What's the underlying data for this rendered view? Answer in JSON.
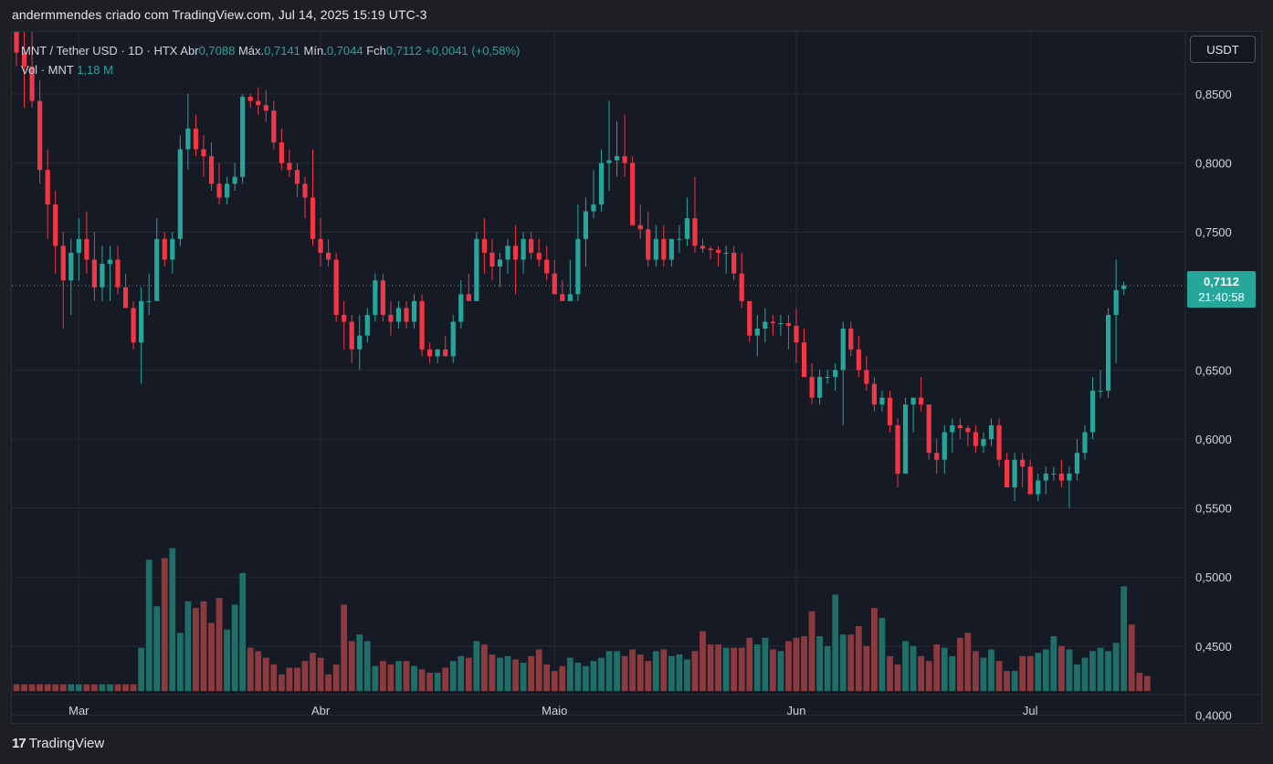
{
  "header": {
    "attribution": "andermmendes criado com TradingView.com, Jul 14, 2025 15:19 UTC-3"
  },
  "legend": {
    "symbol": "MNT / Tether USD · 1D · HTX",
    "open_label": "Abr",
    "open_value": "0,7088",
    "high_label": "Máx.",
    "high_value": "0,7141",
    "low_label": "Mín.",
    "low_value": "0,7044",
    "close_label": "Fch",
    "close_value": "0,7112",
    "change": "+0,0041 (+0,58%)",
    "volume_label": "Vol · MNT",
    "volume_value": "1,18 M"
  },
  "currency_button": "USDT",
  "last_price": {
    "price": "0,7112",
    "countdown": "21:40:58"
  },
  "footer": {
    "logo_mark": "17",
    "brand": "TradingView"
  },
  "colors": {
    "up": "#26a69a",
    "down": "#f23645",
    "volume_up": "#1f6e67",
    "volume_down": "#8c3a3f",
    "background": "#161a25",
    "grid": "#262a35"
  },
  "chart_data": {
    "type": "candlestick",
    "price_axis_ticks": [
      "0,8500",
      "0,8000",
      "0,7500",
      "0,6500",
      "0,6000",
      "0,5500",
      "0,5000",
      "0,4500",
      "0,4000"
    ],
    "price_axis_values": [
      0.85,
      0.8,
      0.75,
      0.65,
      0.6,
      0.55,
      0.5,
      0.45,
      0.4
    ],
    "ylim": [
      0.393,
      0.895
    ],
    "time_axis_labels": [
      "Mar",
      "Abr",
      "Maio",
      "Jun",
      "Jul"
    ],
    "time_axis_label_bar_index": [
      8,
      39,
      69,
      100,
      130
    ],
    "bar_count": 147,
    "last_price": 0.7112,
    "ohlc": [
      [
        0.905,
        0.93,
        0.87,
        0.88
      ],
      [
        0.88,
        0.92,
        0.84,
        0.87
      ],
      [
        0.87,
        0.91,
        0.84,
        0.845
      ],
      [
        0.845,
        0.86,
        0.785,
        0.795
      ],
      [
        0.795,
        0.81,
        0.745,
        0.77
      ],
      [
        0.77,
        0.78,
        0.72,
        0.74
      ],
      [
        0.74,
        0.75,
        0.68,
        0.715
      ],
      [
        0.715,
        0.745,
        0.69,
        0.735
      ],
      [
        0.735,
        0.76,
        0.715,
        0.745
      ],
      [
        0.745,
        0.765,
        0.72,
        0.73
      ],
      [
        0.73,
        0.75,
        0.7,
        0.71
      ],
      [
        0.71,
        0.74,
        0.7,
        0.727
      ],
      [
        0.727,
        0.74,
        0.7,
        0.73
      ],
      [
        0.73,
        0.74,
        0.705,
        0.71
      ],
      [
        0.71,
        0.72,
        0.695,
        0.695
      ],
      [
        0.695,
        0.7,
        0.665,
        0.67
      ],
      [
        0.67,
        0.71,
        0.64,
        0.7
      ],
      [
        0.7,
        0.72,
        0.69,
        0.7
      ],
      [
        0.7,
        0.76,
        0.7,
        0.745
      ],
      [
        0.745,
        0.75,
        0.725,
        0.73
      ],
      [
        0.73,
        0.75,
        0.72,
        0.745
      ],
      [
        0.745,
        0.82,
        0.74,
        0.81
      ],
      [
        0.81,
        0.85,
        0.795,
        0.825
      ],
      [
        0.825,
        0.835,
        0.805,
        0.81
      ],
      [
        0.81,
        0.82,
        0.79,
        0.805
      ],
      [
        0.805,
        0.815,
        0.78,
        0.785
      ],
      [
        0.785,
        0.8,
        0.77,
        0.775
      ],
      [
        0.775,
        0.79,
        0.77,
        0.785
      ],
      [
        0.785,
        0.8,
        0.78,
        0.79
      ],
      [
        0.79,
        0.85,
        0.785,
        0.848
      ],
      [
        0.848,
        0.85,
        0.84,
        0.845
      ],
      [
        0.845,
        0.855,
        0.835,
        0.842
      ],
      [
        0.842,
        0.853,
        0.83,
        0.838
      ],
      [
        0.838,
        0.845,
        0.81,
        0.815
      ],
      [
        0.815,
        0.825,
        0.795,
        0.8
      ],
      [
        0.8,
        0.81,
        0.79,
        0.795
      ],
      [
        0.795,
        0.8,
        0.775,
        0.785
      ],
      [
        0.785,
        0.79,
        0.76,
        0.775
      ],
      [
        0.775,
        0.81,
        0.74,
        0.745
      ],
      [
        0.745,
        0.76,
        0.725,
        0.735
      ],
      [
        0.735,
        0.745,
        0.725,
        0.73
      ],
      [
        0.73,
        0.735,
        0.685,
        0.69
      ],
      [
        0.69,
        0.7,
        0.665,
        0.685
      ],
      [
        0.685,
        0.69,
        0.655,
        0.665
      ],
      [
        0.665,
        0.69,
        0.65,
        0.675
      ],
      [
        0.675,
        0.695,
        0.67,
        0.69
      ],
      [
        0.69,
        0.72,
        0.685,
        0.715
      ],
      [
        0.715,
        0.72,
        0.685,
        0.69
      ],
      [
        0.69,
        0.7,
        0.675,
        0.685
      ],
      [
        0.685,
        0.7,
        0.68,
        0.695
      ],
      [
        0.695,
        0.7,
        0.68,
        0.685
      ],
      [
        0.685,
        0.705,
        0.68,
        0.7
      ],
      [
        0.7,
        0.705,
        0.66,
        0.665
      ],
      [
        0.665,
        0.67,
        0.655,
        0.66
      ],
      [
        0.66,
        0.665,
        0.655,
        0.665
      ],
      [
        0.665,
        0.675,
        0.66,
        0.66
      ],
      [
        0.66,
        0.69,
        0.655,
        0.685
      ],
      [
        0.685,
        0.715,
        0.68,
        0.705
      ],
      [
        0.705,
        0.72,
        0.7,
        0.7
      ],
      [
        0.7,
        0.75,
        0.7,
        0.745
      ],
      [
        0.745,
        0.76,
        0.72,
        0.735
      ],
      [
        0.735,
        0.745,
        0.715,
        0.725
      ],
      [
        0.725,
        0.735,
        0.71,
        0.73
      ],
      [
        0.73,
        0.745,
        0.72,
        0.74
      ],
      [
        0.74,
        0.755,
        0.705,
        0.73
      ],
      [
        0.73,
        0.75,
        0.72,
        0.745
      ],
      [
        0.745,
        0.75,
        0.73,
        0.735
      ],
      [
        0.735,
        0.745,
        0.725,
        0.73
      ],
      [
        0.73,
        0.74,
        0.715,
        0.72
      ],
      [
        0.72,
        0.73,
        0.705,
        0.705
      ],
      [
        0.705,
        0.715,
        0.7,
        0.7
      ],
      [
        0.7,
        0.73,
        0.7,
        0.705
      ],
      [
        0.705,
        0.77,
        0.7,
        0.745
      ],
      [
        0.745,
        0.775,
        0.725,
        0.765
      ],
      [
        0.765,
        0.795,
        0.76,
        0.77
      ],
      [
        0.77,
        0.81,
        0.765,
        0.8
      ],
      [
        0.8,
        0.845,
        0.78,
        0.802
      ],
      [
        0.802,
        0.83,
        0.79,
        0.805
      ],
      [
        0.805,
        0.835,
        0.79,
        0.8
      ],
      [
        0.8,
        0.805,
        0.755,
        0.755
      ],
      [
        0.755,
        0.77,
        0.745,
        0.752
      ],
      [
        0.752,
        0.765,
        0.725,
        0.73
      ],
      [
        0.73,
        0.755,
        0.725,
        0.745
      ],
      [
        0.745,
        0.755,
        0.725,
        0.73
      ],
      [
        0.73,
        0.745,
        0.725,
        0.745
      ],
      [
        0.745,
        0.755,
        0.735,
        0.745
      ],
      [
        0.745,
        0.775,
        0.74,
        0.76
      ],
      [
        0.76,
        0.79,
        0.735,
        0.74
      ],
      [
        0.74,
        0.745,
        0.735,
        0.738
      ],
      [
        0.738,
        0.74,
        0.73,
        0.737
      ],
      [
        0.737,
        0.74,
        0.725,
        0.735
      ],
      [
        0.735,
        0.74,
        0.72,
        0.735
      ],
      [
        0.735,
        0.74,
        0.715,
        0.72
      ],
      [
        0.72,
        0.735,
        0.695,
        0.7
      ],
      [
        0.7,
        0.7,
        0.67,
        0.675
      ],
      [
        0.675,
        0.69,
        0.66,
        0.68
      ],
      [
        0.68,
        0.695,
        0.67,
        0.685
      ],
      [
        0.685,
        0.69,
        0.675,
        0.684
      ],
      [
        0.684,
        0.69,
        0.675,
        0.684
      ],
      [
        0.684,
        0.69,
        0.665,
        0.682
      ],
      [
        0.682,
        0.695,
        0.655,
        0.67
      ],
      [
        0.67,
        0.68,
        0.645,
        0.645
      ],
      [
        0.645,
        0.655,
        0.625,
        0.63
      ],
      [
        0.63,
        0.65,
        0.625,
        0.645
      ],
      [
        0.645,
        0.65,
        0.64,
        0.645
      ],
      [
        0.645,
        0.655,
        0.635,
        0.65
      ],
      [
        0.65,
        0.685,
        0.61,
        0.68
      ],
      [
        0.68,
        0.685,
        0.66,
        0.665
      ],
      [
        0.665,
        0.675,
        0.645,
        0.65
      ],
      [
        0.65,
        0.66,
        0.635,
        0.64
      ],
      [
        0.64,
        0.645,
        0.62,
        0.625
      ],
      [
        0.625,
        0.635,
        0.62,
        0.63
      ],
      [
        0.63,
        0.635,
        0.605,
        0.61
      ],
      [
        0.61,
        0.615,
        0.565,
        0.575
      ],
      [
        0.575,
        0.63,
        0.575,
        0.625
      ],
      [
        0.625,
        0.63,
        0.605,
        0.63
      ],
      [
        0.63,
        0.645,
        0.62,
        0.625
      ],
      [
        0.625,
        0.625,
        0.585,
        0.59
      ],
      [
        0.59,
        0.6,
        0.575,
        0.585
      ],
      [
        0.585,
        0.61,
        0.575,
        0.605
      ],
      [
        0.605,
        0.615,
        0.59,
        0.61
      ],
      [
        0.61,
        0.615,
        0.6,
        0.608
      ],
      [
        0.608,
        0.61,
        0.595,
        0.605
      ],
      [
        0.605,
        0.61,
        0.59,
        0.595
      ],
      [
        0.595,
        0.605,
        0.59,
        0.6
      ],
      [
        0.6,
        0.615,
        0.595,
        0.61
      ],
      [
        0.61,
        0.615,
        0.58,
        0.585
      ],
      [
        0.585,
        0.59,
        0.565,
        0.565
      ],
      [
        0.565,
        0.59,
        0.555,
        0.585
      ],
      [
        0.585,
        0.59,
        0.565,
        0.58
      ],
      [
        0.58,
        0.585,
        0.56,
        0.56
      ],
      [
        0.56,
        0.575,
        0.555,
        0.57
      ],
      [
        0.57,
        0.58,
        0.56,
        0.575
      ],
      [
        0.575,
        0.58,
        0.57,
        0.575
      ],
      [
        0.575,
        0.585,
        0.565,
        0.57
      ],
      [
        0.57,
        0.58,
        0.55,
        0.575
      ],
      [
        0.575,
        0.6,
        0.57,
        0.59
      ],
      [
        0.59,
        0.61,
        0.585,
        0.605
      ],
      [
        0.605,
        0.645,
        0.6,
        0.635
      ],
      [
        0.635,
        0.65,
        0.63,
        0.635
      ],
      [
        0.635,
        0.695,
        0.63,
        0.69
      ],
      [
        0.69,
        0.73,
        0.655,
        0.708
      ],
      [
        0.7088,
        0.7141,
        0.7044,
        0.7112
      ]
    ],
    "volume_relative": [
      0.04,
      0.04,
      0.04,
      0.04,
      0.04,
      0.04,
      0.04,
      0.04,
      0.04,
      0.04,
      0.04,
      0.04,
      0.04,
      0.04,
      0.04,
      0.04,
      0.26,
      0.79,
      0.51,
      0.8,
      0.86,
      0.35,
      0.54,
      0.5,
      0.54,
      0.41,
      0.56,
      0.37,
      0.52,
      0.71,
      0.26,
      0.24,
      0.2,
      0.16,
      0.1,
      0.14,
      0.14,
      0.18,
      0.23,
      0.2,
      0.1,
      0.16,
      0.52,
      0.3,
      0.34,
      0.3,
      0.15,
      0.18,
      0.16,
      0.18,
      0.18,
      0.15,
      0.13,
      0.11,
      0.11,
      0.14,
      0.18,
      0.21,
      0.2,
      0.3,
      0.28,
      0.22,
      0.2,
      0.21,
      0.19,
      0.17,
      0.21,
      0.25,
      0.16,
      0.12,
      0.15,
      0.2,
      0.17,
      0.15,
      0.18,
      0.2,
      0.24,
      0.24,
      0.21,
      0.25,
      0.22,
      0.18,
      0.24,
      0.25,
      0.21,
      0.22,
      0.19,
      0.24,
      0.36,
      0.28,
      0.28,
      0.26,
      0.26,
      0.26,
      0.32,
      0.28,
      0.32,
      0.25,
      0.24,
      0.3,
      0.32,
      0.33,
      0.48,
      0.33,
      0.27,
      0.58,
      0.34,
      0.34,
      0.39,
      0.27,
      0.5,
      0.44,
      0.21,
      0.16,
      0.3,
      0.27,
      0.21,
      0.18,
      0.28,
      0.26,
      0.21,
      0.32,
      0.35,
      0.24,
      0.2,
      0.25,
      0.18,
      0.12,
      0.12,
      0.21,
      0.21,
      0.23,
      0.25,
      0.33,
      0.27,
      0.25,
      0.16,
      0.2,
      0.24,
      0.26,
      0.24,
      0.29,
      0.63,
      0.4,
      0.11,
      0.09
    ]
  }
}
